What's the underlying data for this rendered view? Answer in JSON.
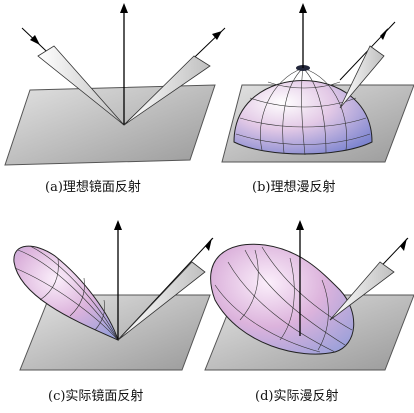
{
  "panels": [
    {
      "id": "a",
      "caption": "(a)理想镜面反射"
    },
    {
      "id": "b",
      "caption": "(b)理想漫反射"
    },
    {
      "id": "c",
      "caption": "(c)实际镜面反射"
    },
    {
      "id": "d",
      "caption": "(d)实际漫反射"
    }
  ],
  "colors": {
    "plate": "#bdbdbd",
    "plate_edge": "#555555",
    "lobe_light": "#f3e6f3",
    "lobe_pink": "#d8a9d8",
    "lobe_blue": "#8f9bd8",
    "line": "#000000"
  }
}
